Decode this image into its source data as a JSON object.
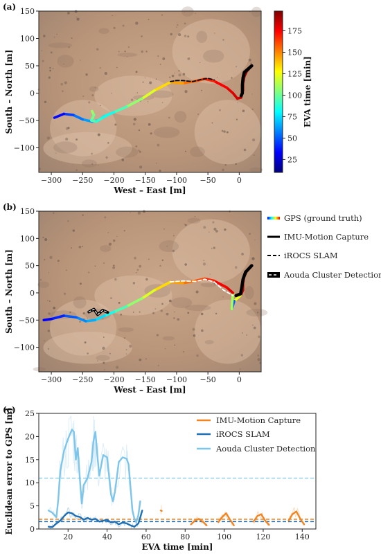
{
  "chart_data": [
    {
      "panel": "(a)",
      "type": "line",
      "xlabel": "West – East [m]",
      "ylabel": "South – North [m]",
      "xlim": [
        -320,
        35
      ],
      "ylim": [
        -145,
        150
      ],
      "xticks": [
        -300,
        -250,
        -200,
        -150,
        -100,
        -50,
        0
      ],
      "yticks": [
        -100,
        -50,
        0,
        50,
        100,
        150
      ],
      "background": "aerial-image",
      "colorbar": {
        "label": "EVA time [min]",
        "ticks": [
          25,
          50,
          75,
          100,
          125,
          150,
          175
        ],
        "range": [
          10,
          198
        ],
        "colormap": "jet"
      },
      "series": [
        {
          "type": "colored-line",
          "color_by": "EVA time [min]",
          "points": [
            {
              "x": 20,
              "y": 50,
              "t": 198
            },
            {
              "x": 12,
              "y": 40,
              "t": 195
            },
            {
              "x": 8,
              "y": 30,
              "t": 192
            },
            {
              "x": 6,
              "y": 18,
              "t": 190
            },
            {
              "x": 6,
              "y": 5,
              "t": 188
            },
            {
              "x": 3,
              "y": -8,
              "t": 186
            },
            {
              "x": -3,
              "y": -10,
              "t": 184
            },
            {
              "x": -10,
              "y": 0,
              "t": 182
            },
            {
              "x": -20,
              "y": 10,
              "t": 178
            },
            {
              "x": -40,
              "y": 22,
              "t": 172
            },
            {
              "x": -55,
              "y": 26,
              "t": 165
            },
            {
              "x": -70,
              "y": 22,
              "t": 158
            },
            {
              "x": -90,
              "y": 18,
              "t": 150
            },
            {
              "x": -110,
              "y": 20,
              "t": 140
            },
            {
              "x": -135,
              "y": 5,
              "t": 128
            },
            {
              "x": -155,
              "y": -10,
              "t": 115
            },
            {
              "x": -180,
              "y": -25,
              "t": 100
            },
            {
              "x": -200,
              "y": -35,
              "t": 88
            },
            {
              "x": -215,
              "y": -42,
              "t": 78
            },
            {
              "x": -225,
              "y": -50,
              "t": 70
            },
            {
              "x": -235,
              "y": -52,
              "t": 65
            },
            {
              "x": -250,
              "y": -48,
              "t": 60
            },
            {
              "x": -265,
              "y": -40,
              "t": 50
            },
            {
              "x": -280,
              "y": -38,
              "t": 40
            },
            {
              "x": -295,
              "y": -45,
              "t": 30
            }
          ]
        },
        {
          "type": "colored-line",
          "color_by": "EVA time [min]",
          "points": [
            {
              "x": -235,
              "y": -33,
              "t": 112
            },
            {
              "x": -232,
              "y": -40,
              "t": 105
            },
            {
              "x": -236,
              "y": -50,
              "t": 98
            },
            {
              "x": -228,
              "y": -52,
              "t": 92
            },
            {
              "x": -218,
              "y": -45,
              "t": 86
            },
            {
              "x": -210,
              "y": -40,
              "t": 82
            }
          ]
        },
        {
          "name": "IMU-Motion Capture",
          "color": "#000000",
          "points": [
            {
              "x": 20,
              "y": 50
            },
            {
              "x": 8,
              "y": 38
            },
            {
              "x": 6,
              "y": 28
            },
            {
              "x": 5,
              "y": 15
            },
            {
              "x": 5,
              "y": 0
            },
            {
              "x": 3,
              "y": -5
            }
          ]
        },
        {
          "name": "iROCS SLAM",
          "color": "#000000",
          "dash": "dashed",
          "points": [
            {
              "x": -110,
              "y": 21
            },
            {
              "x": -100,
              "y": 23
            },
            {
              "x": -90,
              "y": 23
            },
            {
              "x": -75,
              "y": 21
            },
            {
              "x": -60,
              "y": 25
            },
            {
              "x": -50,
              "y": 27
            },
            {
              "x": -40,
              "y": 24
            }
          ]
        }
      ]
    },
    {
      "panel": "(b)",
      "type": "line",
      "xlabel": "West – East [m]",
      "ylabel": "South – North [m]",
      "xlim": [
        -320,
        35
      ],
      "ylim": [
        -145,
        150
      ],
      "xticks": [
        -300,
        -250,
        -200,
        -150,
        -100,
        -50,
        0
      ],
      "yticks": [
        -100,
        -50,
        0,
        50,
        100,
        150
      ],
      "background": "aerial-image",
      "legend": {
        "placement": "right",
        "entries": [
          {
            "label": "GPS (ground truth)",
            "style": "colormap"
          },
          {
            "label": "IMU-Motion Capture",
            "style": "solid"
          },
          {
            "label": "iROCS SLAM",
            "style": "dashed"
          },
          {
            "label": "Aouda Cluster Detection",
            "style": "thick-dashed"
          }
        ]
      },
      "series": [
        {
          "name": "GPS (ground truth)",
          "type": "colored-line",
          "color_by": "EVA time [min]",
          "points": [
            {
              "x": 20,
              "y": 50,
              "t": 198
            },
            {
              "x": 12,
              "y": 40,
              "t": 195
            },
            {
              "x": 8,
              "y": 30,
              "t": 192
            },
            {
              "x": 6,
              "y": 18,
              "t": 190
            },
            {
              "x": 6,
              "y": 5,
              "t": 188
            },
            {
              "x": 2,
              "y": -5,
              "t": 186
            },
            {
              "x": -8,
              "y": -15,
              "t": 60
            },
            {
              "x": -12,
              "y": -30,
              "t": 40
            },
            {
              "x": -10,
              "y": 0,
              "t": 182
            },
            {
              "x": -20,
              "y": 10,
              "t": 178
            },
            {
              "x": -40,
              "y": 22,
              "t": 172
            },
            {
              "x": -55,
              "y": 26,
              "t": 165
            },
            {
              "x": -70,
              "y": 22,
              "t": 158
            },
            {
              "x": -90,
              "y": 18,
              "t": 150
            },
            {
              "x": -110,
              "y": 20,
              "t": 140
            },
            {
              "x": -135,
              "y": 5,
              "t": 128
            },
            {
              "x": -155,
              "y": -10,
              "t": 115
            },
            {
              "x": -180,
              "y": -25,
              "t": 100
            },
            {
              "x": -200,
              "y": -35,
              "t": 88
            },
            {
              "x": -215,
              "y": -42,
              "t": 78
            },
            {
              "x": -230,
              "y": -50,
              "t": 70
            },
            {
              "x": -245,
              "y": -52,
              "t": 62
            },
            {
              "x": -260,
              "y": -45,
              "t": 55
            },
            {
              "x": -280,
              "y": -42,
              "t": 45
            },
            {
              "x": -300,
              "y": -48,
              "t": 35
            },
            {
              "x": -312,
              "y": -50,
              "t": 30
            }
          ]
        },
        {
          "name": "IMU-Motion Capture",
          "color": "#000000",
          "points": [
            {
              "x": 20,
              "y": 50
            },
            {
              "x": 10,
              "y": 38
            },
            {
              "x": 6,
              "y": 25
            },
            {
              "x": 4,
              "y": 10
            },
            {
              "x": 2,
              "y": -2
            },
            {
              "x": -5,
              "y": -5
            }
          ]
        },
        {
          "name": "iROCS SLAM",
          "color": "#ffffff",
          "dash": "dashed",
          "points": [
            {
              "x": -110,
              "y": 20
            },
            {
              "x": -90,
              "y": 22
            },
            {
              "x": -70,
              "y": 21
            },
            {
              "x": -55,
              "y": 25
            },
            {
              "x": -40,
              "y": 20
            },
            {
              "x": -25,
              "y": 5
            },
            {
              "x": -10,
              "y": -5
            }
          ]
        },
        {
          "name": "Aouda Cluster Detection",
          "color": "#000000",
          "dash": "thick-dashed",
          "points": [
            {
              "x": -240,
              "y": -35
            },
            {
              "x": -232,
              "y": -30
            },
            {
              "x": -226,
              "y": -40
            },
            {
              "x": -218,
              "y": -32
            },
            {
              "x": -210,
              "y": -36
            }
          ]
        }
      ]
    },
    {
      "panel": "(c)",
      "type": "line",
      "xlabel": "EVA time [min]",
      "ylabel": "Euclidean error to GPS [m]",
      "xlim": [
        5,
        147
      ],
      "ylim": [
        0,
        25
      ],
      "xticks": [
        20,
        40,
        60,
        80,
        100,
        120,
        140
      ],
      "yticks": [
        0,
        5,
        10,
        15,
        20,
        25
      ],
      "legend": {
        "placement": "top-right",
        "entries": [
          "IMU-Motion Capture",
          "iROCS SLAM",
          "Aouda Cluster Detection"
        ]
      },
      "series": [
        {
          "name": "IMU-Motion Capture",
          "color": "#f28522",
          "mean": 2.1,
          "segments": [
            [
              [
                67.5,
                4.0
              ],
              [
                68.0,
                3.9
              ]
            ],
            [
              [
                83,
                1.0
              ],
              [
                85,
                1.8
              ],
              [
                87,
                2.2
              ],
              [
                89,
                1.6
              ],
              [
                91,
                0.8
              ]
            ],
            [
              [
                97,
                1.5
              ],
              [
                99,
                2.6
              ],
              [
                101,
                3.4
              ],
              [
                103,
                2.0
              ],
              [
                105,
                0.8
              ]
            ],
            [
              [
                115,
                1.6
              ],
              [
                117,
                2.8
              ],
              [
                119,
                3.2
              ],
              [
                121,
                1.8
              ],
              [
                123,
                0.9
              ]
            ],
            [
              [
                133,
                1.8
              ],
              [
                135,
                3.2
              ],
              [
                137,
                3.8
              ],
              [
                139,
                2.2
              ],
              [
                141,
                1.0
              ]
            ]
          ]
        },
        {
          "name": "iROCS SLAM",
          "color": "#1f6fb4",
          "mean": 1.6,
          "segments": [
            [
              [
                10,
                0.5
              ],
              [
                12,
                0.4
              ],
              [
                14,
                1.2
              ],
              [
                16,
                1.8
              ],
              [
                18,
                2.8
              ],
              [
                20,
                3.6
              ],
              [
                22,
                3.4
              ],
              [
                24,
                2.8
              ],
              [
                26,
                2.6
              ],
              [
                28,
                2.0
              ],
              [
                30,
                2.4
              ],
              [
                32,
                2.0
              ],
              [
                34,
                2.2
              ],
              [
                36,
                1.6
              ],
              [
                38,
                1.8
              ],
              [
                40,
                2.0
              ],
              [
                42,
                1.4
              ],
              [
                44,
                1.6
              ],
              [
                46,
                1.0
              ],
              [
                48,
                1.4
              ],
              [
                50,
                1.2
              ],
              [
                52,
                0.8
              ],
              [
                54,
                0.5
              ],
              [
                56,
                1.2
              ],
              [
                57,
                2.5
              ],
              [
                58,
                4.0
              ]
            ]
          ]
        },
        {
          "name": "Aouda Cluster Detection",
          "color": "#7fc5ea",
          "mean": 11.0,
          "segments": [
            [
              [
                10,
                4.0
              ],
              [
                12,
                3.5
              ],
              [
                14,
                2.5
              ],
              [
                15,
                6.5
              ],
              [
                16,
                12.5
              ],
              [
                18,
                17.0
              ],
              [
                20,
                19.5
              ],
              [
                22,
                21.5
              ],
              [
                23,
                21.0
              ],
              [
                24,
                15.0
              ],
              [
                25,
                17.5
              ],
              [
                26,
                11.0
              ],
              [
                27,
                5.5
              ],
              [
                28,
                9.5
              ],
              [
                30,
                11.0
              ],
              [
                32,
                14.5
              ],
              [
                33,
                19.0
              ],
              [
                34,
                21.0
              ],
              [
                35,
                16.0
              ],
              [
                36,
                11.5
              ],
              [
                38,
                16.0
              ],
              [
                40,
                15.5
              ],
              [
                42,
                7.5
              ],
              [
                43,
                6.0
              ],
              [
                44,
                8.0
              ],
              [
                46,
                14.5
              ],
              [
                48,
                15.5
              ],
              [
                50,
                15.2
              ],
              [
                51,
                14.0
              ],
              [
                52,
                9.0
              ],
              [
                53,
                4.0
              ],
              [
                54,
                2.2
              ],
              [
                55,
                1.5
              ],
              [
                56,
                3.0
              ],
              [
                57,
                6.0
              ]
            ]
          ]
        }
      ]
    }
  ]
}
